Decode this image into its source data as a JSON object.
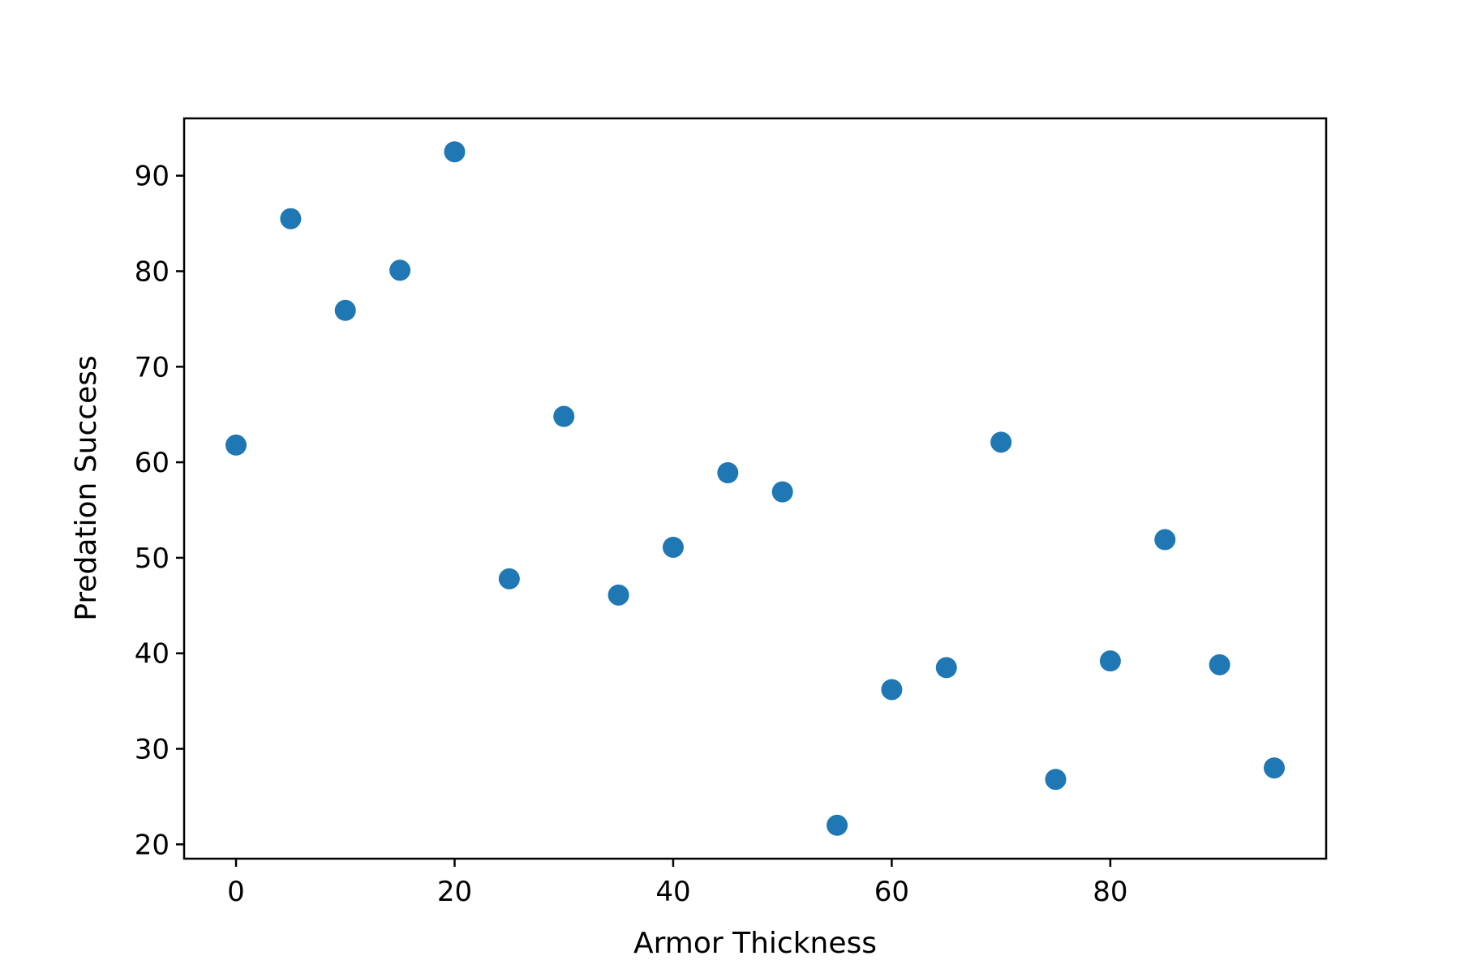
{
  "chart_data": {
    "type": "scatter",
    "title": "",
    "xlabel": "Armor Thickness",
    "ylabel": "Predation Success",
    "xlim": [
      -4.75,
      99.75
    ],
    "ylim": [
      18.5,
      96
    ],
    "xticks": [
      0,
      20,
      40,
      60,
      80
    ],
    "yticks": [
      20,
      30,
      40,
      50,
      60,
      70,
      80,
      90
    ],
    "grid": false,
    "legend": "none",
    "marker_color": "#1f77b4",
    "series": [
      {
        "x": [
          0,
          5,
          10,
          15,
          20,
          25,
          30,
          35,
          40,
          45,
          50,
          55,
          60,
          65,
          70,
          75,
          80,
          85,
          90,
          95
        ],
        "y": [
          61.8,
          85.5,
          75.9,
          80.1,
          92.5,
          47.8,
          64.8,
          46.1,
          51.1,
          58.9,
          56.9,
          22.0,
          36.2,
          38.5,
          62.1,
          26.8,
          39.2,
          51.9,
          38.8,
          28.0
        ]
      }
    ]
  }
}
